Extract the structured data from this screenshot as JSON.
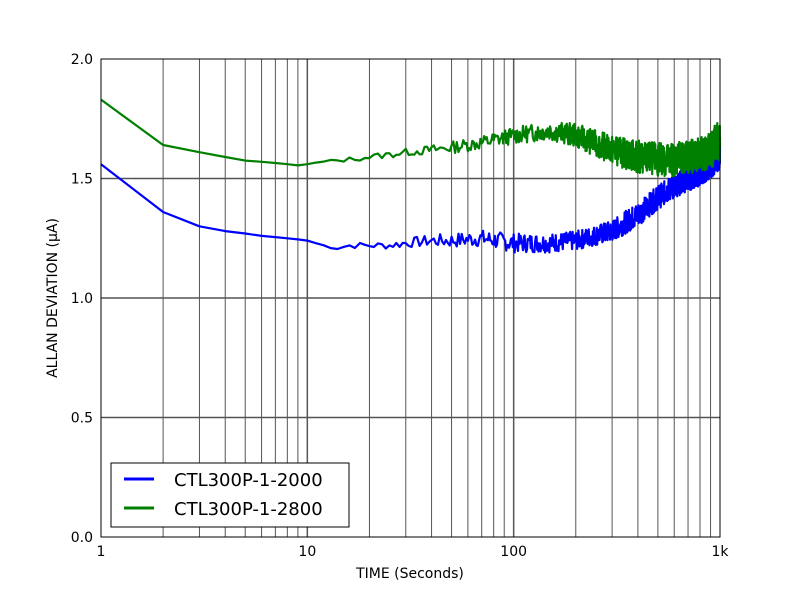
{
  "chart_data": {
    "type": "line",
    "title": "",
    "xlabel": "TIME (Seconds)",
    "ylabel": "ALLAN DEVIATION (µA)",
    "xscale": "log",
    "xlim": [
      1,
      1000
    ],
    "ylim": [
      0.0,
      2.0
    ],
    "x_tick_labels": [
      "1",
      "10",
      "100",
      "1k"
    ],
    "y_tick_labels": [
      "0.0",
      "0.5",
      "1.0",
      "1.5",
      "2.0"
    ],
    "grid": true,
    "legend_position": "lower left",
    "series": [
      {
        "name": "CTL300P-1-2000",
        "color": "#0000ff",
        "x": [
          1,
          2,
          3,
          4,
          5,
          6,
          7,
          8,
          9,
          10,
          12,
          14,
          16,
          20,
          25,
          30,
          40,
          50,
          70,
          100,
          150,
          200,
          300,
          400,
          500,
          600,
          700,
          800,
          900,
          1000
        ],
        "y": [
          1.56,
          1.36,
          1.3,
          1.28,
          1.27,
          1.26,
          1.255,
          1.25,
          1.245,
          1.24,
          1.22,
          1.21,
          1.22,
          1.22,
          1.22,
          1.23,
          1.24,
          1.24,
          1.25,
          1.23,
          1.23,
          1.24,
          1.28,
          1.35,
          1.42,
          1.47,
          1.5,
          1.53,
          1.56,
          1.6
        ],
        "noise": [
          0,
          0,
          0,
          0,
          0,
          0,
          0,
          0,
          0,
          0,
          0.005,
          0.01,
          0.012,
          0.015,
          0.015,
          0.02,
          0.025,
          0.03,
          0.035,
          0.04,
          0.04,
          0.04,
          0.045,
          0.05,
          0.05,
          0.05,
          0.055,
          0.06,
          0.06,
          0.06
        ]
      },
      {
        "name": "CTL300P-1-2800",
        "color": "#008000",
        "x": [
          1,
          2,
          3,
          4,
          5,
          6,
          7,
          8,
          9,
          10,
          12,
          14,
          16,
          20,
          25,
          30,
          40,
          50,
          70,
          100,
          150,
          200,
          300,
          400,
          500,
          600,
          700,
          800,
          900,
          1000
        ],
        "y": [
          1.83,
          1.64,
          1.61,
          1.59,
          1.575,
          1.57,
          1.565,
          1.56,
          1.555,
          1.56,
          1.57,
          1.575,
          1.58,
          1.59,
          1.6,
          1.61,
          1.62,
          1.63,
          1.65,
          1.68,
          1.7,
          1.68,
          1.62,
          1.59,
          1.58,
          1.58,
          1.59,
          1.6,
          1.62,
          1.66
        ],
        "noise": [
          0,
          0,
          0,
          0,
          0,
          0,
          0,
          0,
          0,
          0,
          0.005,
          0.008,
          0.01,
          0.012,
          0.015,
          0.015,
          0.02,
          0.025,
          0.03,
          0.035,
          0.04,
          0.05,
          0.06,
          0.07,
          0.07,
          0.07,
          0.07,
          0.07,
          0.08,
          0.09
        ]
      }
    ]
  }
}
